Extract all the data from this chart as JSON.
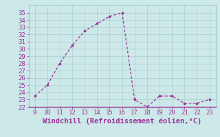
{
  "x": [
    9,
    10,
    11,
    12,
    13,
    14,
    15,
    16,
    17,
    18,
    19,
    20,
    21,
    22,
    23
  ],
  "y": [
    23.5,
    25.0,
    28.0,
    30.5,
    32.5,
    33.5,
    34.5,
    35.0,
    23.0,
    22.0,
    23.5,
    23.5,
    22.5,
    22.5,
    23.0
  ],
  "line_color": "#993399",
  "marker_color": "#993399",
  "bg_color": "#cce8e8",
  "grid_color": "#aacfcf",
  "xlabel": "Windchill (Refroidissement éolien,°C)",
  "xlabel_color": "#993399",
  "xlim": [
    8.5,
    23.5
  ],
  "ylim": [
    22,
    36
  ],
  "xticks": [
    9,
    10,
    11,
    12,
    13,
    14,
    15,
    16,
    17,
    18,
    19,
    20,
    21,
    22,
    23
  ],
  "yticks": [
    22,
    23,
    24,
    25,
    26,
    27,
    28,
    29,
    30,
    31,
    32,
    33,
    34,
    35
  ],
  "tick_color": "#993399",
  "tick_fontsize": 6.5,
  "xlabel_fontsize": 7.5
}
